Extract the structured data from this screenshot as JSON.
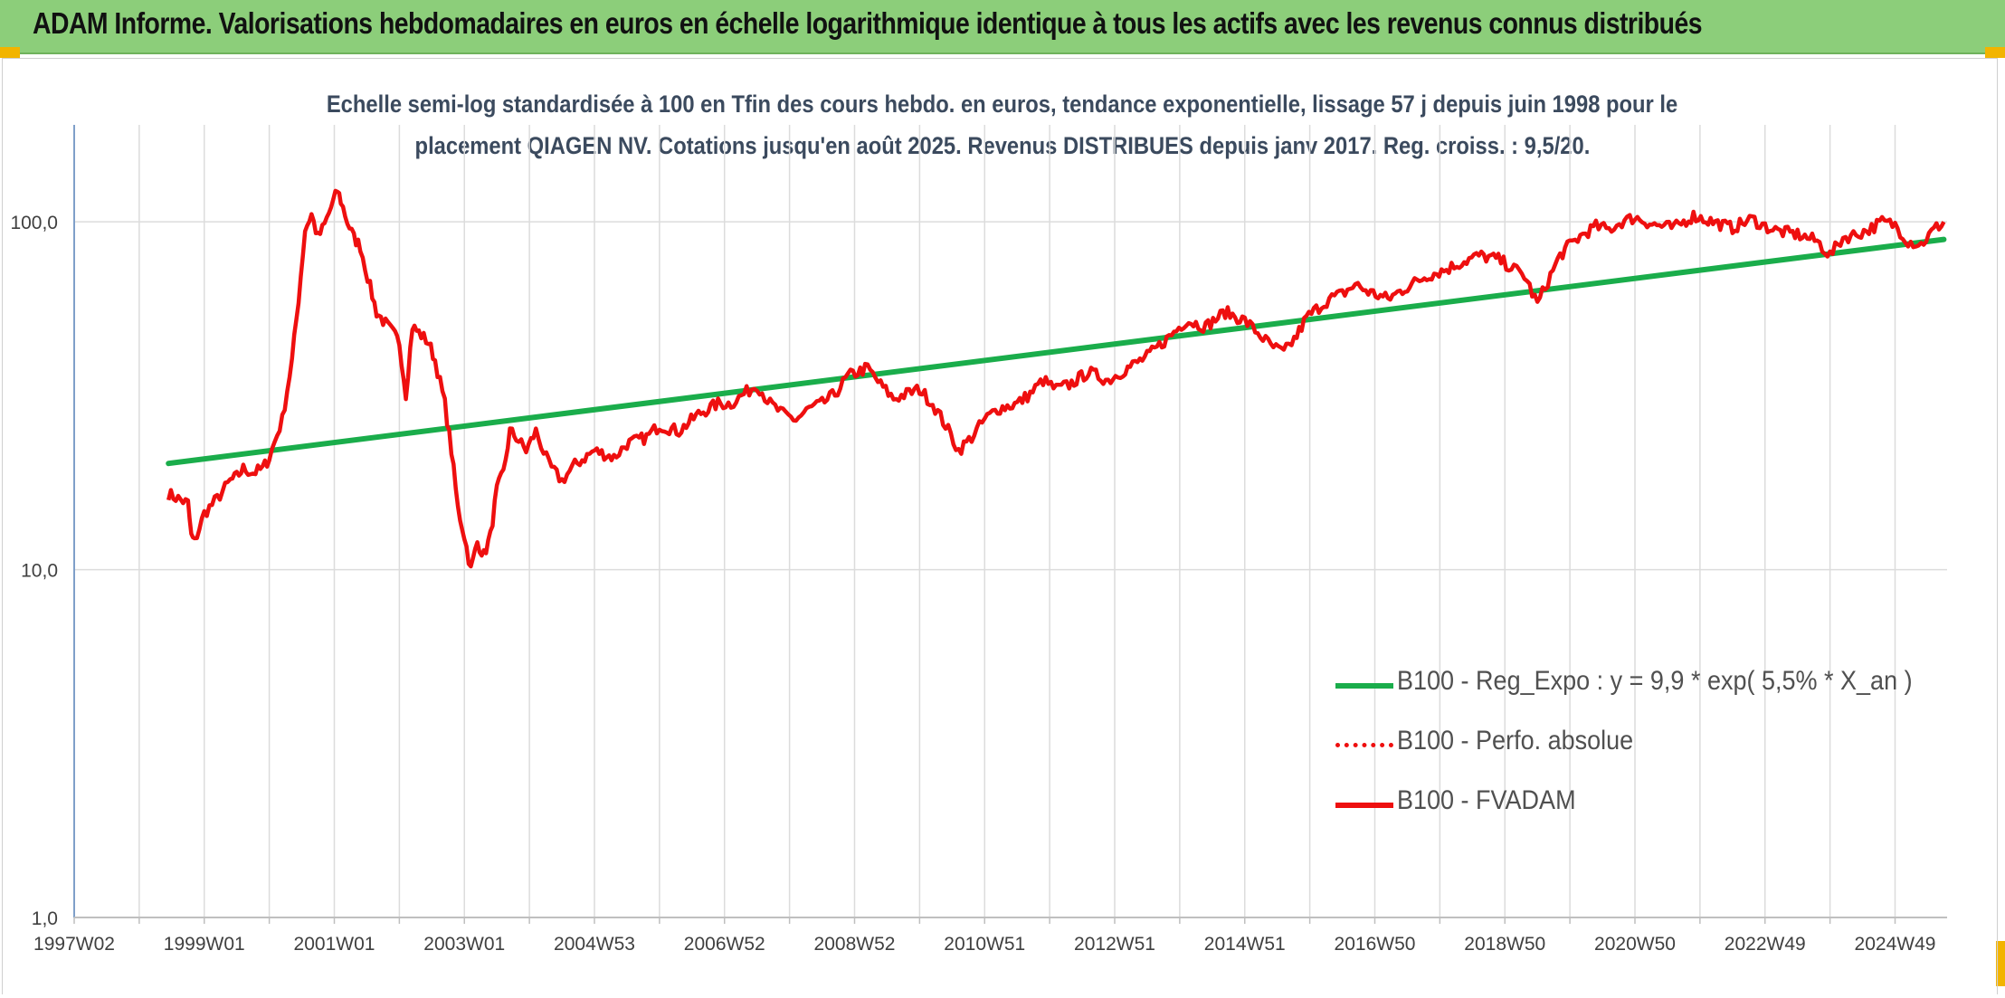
{
  "header": {
    "title": "ADAM Informe. Valorisations hebdomadaires en euros en échelle logarithmique identique à tous les actifs avec les revenus connus distribués"
  },
  "colors": {
    "header_bg": "#8cce7a",
    "trend": "#1aad4b",
    "series": "#ee0f0f",
    "axis": "#7f9fc9",
    "grid": "#dcdcdc"
  },
  "chart_data": {
    "type": "line",
    "title_line1": "Echelle semi-log standardisée à 100 en Tfin des cours hebdo. en euros, tendance exponentielle, lissage 57 j depuis juin 1998 pour le",
    "title_line2": "placement QIAGEN NV. Cotations jusqu'en août 2025. Revenus DISTRIBUES depuis janv 2017. Reg. croiss. : 9,5/20.",
    "y_scale": "log",
    "ylim": [
      1,
      190
    ],
    "y_ticks": [
      {
        "value": 1,
        "label": "1,0"
      },
      {
        "value": 10,
        "label": "10,0"
      },
      {
        "value": 100,
        "label": "100,0"
      }
    ],
    "xlim": [
      1997.0,
      2025.8
    ],
    "x_ticks": [
      {
        "value": 1997.0,
        "label": "1997W02"
      },
      {
        "value": 1999.0,
        "label": "1999W01"
      },
      {
        "value": 2001.0,
        "label": "2001W01"
      },
      {
        "value": 2003.0,
        "label": "2003W01"
      },
      {
        "value": 2005.0,
        "label": "2004W53"
      },
      {
        "value": 2007.0,
        "label": "2006W52"
      },
      {
        "value": 2009.0,
        "label": "2008W52"
      },
      {
        "value": 2011.0,
        "label": "2010W51"
      },
      {
        "value": 2013.0,
        "label": "2012W51"
      },
      {
        "value": 2015.0,
        "label": "2014W51"
      },
      {
        "value": 2017.0,
        "label": "2016W50"
      },
      {
        "value": 2019.0,
        "label": "2018W50"
      },
      {
        "value": 2021.0,
        "label": "2020W50"
      },
      {
        "value": 2023.0,
        "label": "2022W49"
      },
      {
        "value": 2025.0,
        "label": "2024W49"
      }
    ],
    "grid": "vertical-and-horizontal",
    "legend_position": "bottom-right",
    "legend": [
      {
        "label": "B100 - Reg_Expo : y = 9,9 * exp( 5,5% *  X_an )",
        "style": "solid-green"
      },
      {
        "label": "B100 - Perfo. absolue",
        "style": "dotted-red"
      },
      {
        "label": "B100 - FVADAM",
        "style": "solid-red"
      }
    ],
    "series": [
      {
        "name": "B100 - Reg_Expo : y = 9,9 * exp( 5,5% *  X_an )",
        "kind": "trend",
        "x": [
          1998.45,
          2025.75
        ],
        "y": [
          20.2,
          89.0
        ]
      },
      {
        "name": "B100 - FVADAM",
        "kind": "price",
        "x": [
          1998.45,
          1998.6,
          1998.75,
          1998.8,
          1998.85,
          1999.0,
          1999.2,
          1999.4,
          1999.5,
          1999.6,
          1999.75,
          1999.9,
          2000.0,
          2000.2,
          2000.35,
          2000.45,
          2000.55,
          2000.65,
          2000.75,
          2000.85,
          2000.95,
          2001.05,
          2001.1,
          2001.2,
          2001.3,
          2001.4,
          2001.55,
          2001.65,
          2001.75,
          2001.9,
          2002.0,
          2002.1,
          2002.2,
          2002.3,
          2002.45,
          2002.55,
          2002.7,
          2002.8,
          2002.9,
          2003.0,
          2003.1,
          2003.2,
          2003.3,
          2003.4,
          2003.5,
          2003.6,
          2003.7,
          2003.8,
          2003.95,
          2004.1,
          2004.3,
          2004.5,
          2004.7,
          2005.0,
          2005.3,
          2005.5,
          2005.8,
          2006.0,
          2006.3,
          2006.6,
          2006.9,
          2007.1,
          2007.3,
          2007.5,
          2007.7,
          2007.9,
          2008.1,
          2008.3,
          2008.5,
          2008.7,
          2008.9,
          2009.2,
          2009.4,
          2009.6,
          2009.8,
          2010.0,
          2010.2,
          2010.4,
          2010.6,
          2010.8,
          2011.0,
          2011.2,
          2011.5,
          2011.7,
          2011.9,
          2012.1,
          2012.3,
          2012.6,
          2012.9,
          2013.2,
          2013.5,
          2013.8,
          2014.1,
          2014.4,
          2014.7,
          2015.0,
          2015.2,
          2015.4,
          2015.6,
          2015.8,
          2015.95,
          2016.1,
          2016.3,
          2016.5,
          2016.7,
          2016.9,
          2017.2,
          2017.5,
          2017.8,
          2018.1,
          2018.3,
          2018.6,
          2018.9,
          2019.1,
          2019.3,
          2019.5,
          2019.7,
          2019.85,
          2020.0,
          2020.2,
          2020.4,
          2020.6,
          2020.8,
          2021.0,
          2021.3,
          2021.6,
          2021.9,
          2022.2,
          2022.5,
          2022.8,
          2023.0,
          2023.2,
          2023.5,
          2023.8,
          2024.0,
          2024.2,
          2024.4,
          2024.6,
          2024.8,
          2025.0,
          2025.2,
          2025.4,
          2025.6,
          2025.75
        ],
        "y": [
          16.5,
          16.0,
          15.5,
          12.5,
          12.0,
          14.5,
          16.0,
          18.0,
          18.5,
          19.5,
          19.0,
          19.5,
          21.0,
          27.0,
          40.0,
          60.0,
          95.0,
          105.0,
          90.0,
          98.0,
          110.0,
          123.0,
          115.0,
          100.0,
          90.0,
          85.0,
          65.0,
          55.0,
          52.0,
          48.0,
          45.0,
          32.0,
          50.0,
          48.0,
          45.0,
          40.0,
          30.0,
          22.0,
          15.0,
          12.5,
          10.0,
          12.0,
          11.0,
          12.5,
          17.0,
          19.0,
          25.0,
          24.0,
          22.0,
          25.0,
          20.0,
          18.0,
          20.0,
          22.0,
          21.0,
          23.0,
          24.0,
          26.0,
          25.0,
          28.0,
          30.0,
          30.0,
          32.0,
          34.0,
          30.0,
          28.0,
          27.0,
          29.0,
          30.0,
          32.0,
          36.0,
          38.0,
          34.0,
          31.0,
          32.0,
          33.0,
          30.0,
          26.0,
          22.0,
          24.0,
          27.0,
          29.0,
          30.0,
          32.0,
          35.0,
          33.0,
          34.0,
          37.0,
          35.0,
          38.0,
          41.0,
          46.0,
          52.0,
          50.0,
          55.0,
          52.0,
          48.0,
          44.0,
          42.0,
          47.0,
          53.0,
          56.0,
          60.0,
          62.0,
          66.0,
          63.0,
          60.0,
          65.0,
          70.0,
          73.0,
          76.0,
          80.0,
          78.0,
          74.0,
          70.0,
          58.0,
          70.0,
          80.0,
          86.0,
          92.0,
          97.0,
          95.0,
          100.0,
          103.0,
          98.0,
          96.0,
          104.0,
          100.0,
          96.0,
          102.0,
          97.0,
          94.0,
          92.0,
          88.0,
          80.0,
          90.0,
          92.0,
          95.0,
          100.0,
          98.0,
          88.0,
          86.0,
          95.0,
          100.0
        ]
      }
    ]
  }
}
